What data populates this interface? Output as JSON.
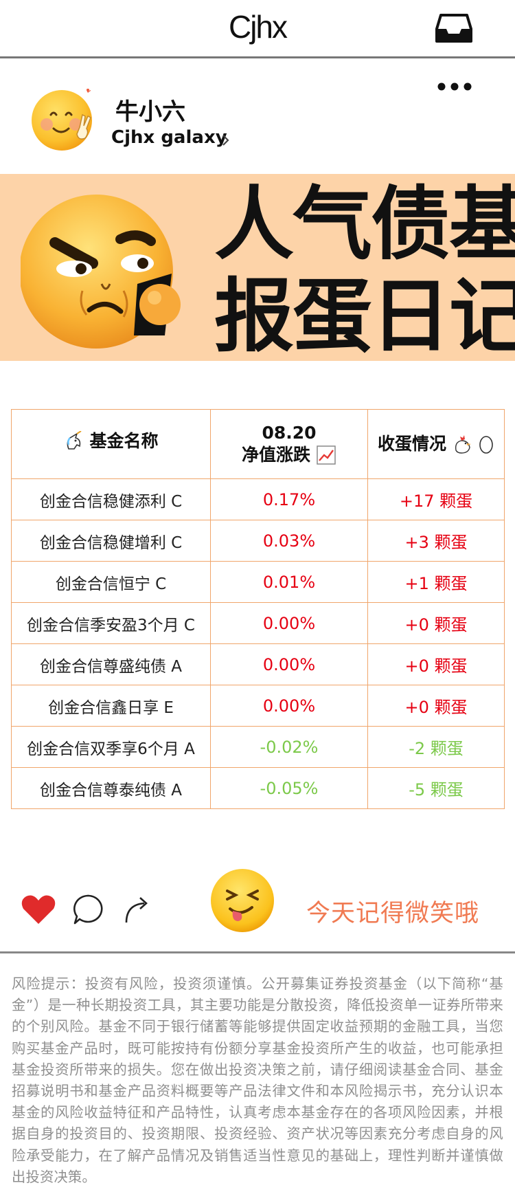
{
  "header": {
    "title": "Cjhx"
  },
  "profile": {
    "name": "牛小六",
    "handle": "Cjhx galaxy"
  },
  "banner": {
    "line1": "人气债基",
    "line2": "报蛋日记"
  },
  "table": {
    "headers": {
      "name": "基金名称",
      "date": "08.20",
      "change": "净值涨跌",
      "eggs": "收蛋情况"
    },
    "rows": [
      {
        "name": "创金合信稳健添利 C",
        "change": "0.17%",
        "eggs": "+17 颗蛋",
        "trend": "up"
      },
      {
        "name": "创金合信稳健增利 C",
        "change": "0.03%",
        "eggs": "+3 颗蛋",
        "trend": "up"
      },
      {
        "name": "创金合信恒宁 C",
        "change": "0.01%",
        "eggs": "+1 颗蛋",
        "trend": "up"
      },
      {
        "name": "创金合信季安盈3个月 C",
        "change": "0.00%",
        "eggs": "+0 颗蛋",
        "trend": "up"
      },
      {
        "name": "创金合信尊盛纯债 A",
        "change": "0.00%",
        "eggs": "+0 颗蛋",
        "trend": "up"
      },
      {
        "name": "创金合信鑫日享 E",
        "change": "0.00%",
        "eggs": "+0 颗蛋",
        "trend": "up"
      },
      {
        "name": "创金合信双季享6个月 A",
        "change": "-0.02%",
        "eggs": "-2 颗蛋",
        "trend": "down"
      },
      {
        "name": "创金合信尊泰纯债 A",
        "change": "-0.05%",
        "eggs": "-5 颗蛋",
        "trend": "down"
      }
    ]
  },
  "actions": {
    "smile_text": "今天记得微笑哦"
  },
  "disclaimer": "风险提示：投资有风险，投资须谨慎。公开募集证券投资基金（以下简称“基金”）是一种长期投资工具，其主要功能是分散投资，降低投资单一证券所带来的个别风险。基金不同于银行储蓄等能够提供固定收益预期的金融工具，当您购买基金产品时，既可能按持有份额分享基金投资所产生的收益，也可能承担基金投资所带来的损失。您在做出投资决策之前，请仔细阅读基金合同、基金招募说明书和基金产品资料概要等产品法律文件和本风险揭示书，充分认识本基金的风险收益特征和产品特性，认真考虑本基金存在的各项风险因素，并根据自身的投资目的、投资期限、投资经验、资产状况等因素充分考虑自身的风险承受能力，在了解产品情况及销售适当性意见的基础上，理性判断并谨慎做出投资决策。",
  "colors": {
    "up": "#e60012",
    "down": "#7cc94a",
    "banner": "#fdd3a8",
    "border": "#f0a56a",
    "accent_text": "#f07a52"
  },
  "icons": [
    "inbox-icon",
    "more-icon",
    "chevron-right-icon",
    "unicorn-icon",
    "chart-up-icon",
    "chicken-icon",
    "egg-icon",
    "heart-icon",
    "comment-icon",
    "share-icon"
  ]
}
